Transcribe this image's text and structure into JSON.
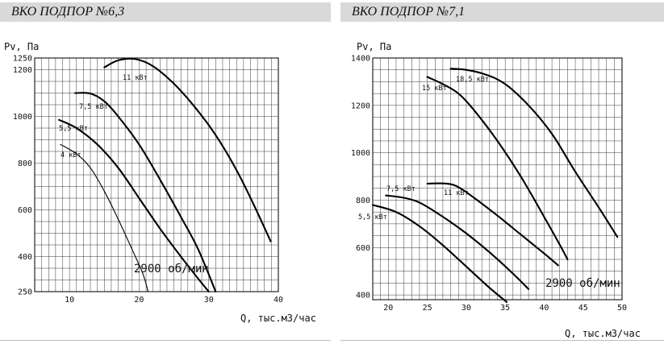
{
  "panels": [
    {
      "title": "ВКО ПОДПОР №6,3"
    },
    {
      "title": "ВКО ПОДПОР №7,1"
    }
  ],
  "chart_data": [
    {
      "type": "line",
      "title": "ВКО ПОДПОР №6,3",
      "xlabel": "Q, тыс.м3/час",
      "ylabel": "Pv, Па",
      "xlim": [
        5,
        40
      ],
      "ylim": [
        250,
        1250
      ],
      "xticks": [
        10,
        20,
        30,
        40
      ],
      "yticks": [
        250,
        400,
        600,
        800,
        1000,
        1200,
        1250
      ],
      "grid": true,
      "annotation": "2900 об/мин",
      "series": [
        {
          "name": "4 кВт",
          "bold": false,
          "x": [
            8.7,
            11,
            13,
            15,
            17,
            19,
            20.5,
            21.3
          ],
          "y": [
            880,
            840,
            780,
            680,
            560,
            430,
            330,
            250
          ]
        },
        {
          "name": "5,5 кВт",
          "bold": true,
          "x": [
            8.5,
            11,
            14,
            17,
            20,
            23,
            26,
            28.5,
            30
          ],
          "y": [
            985,
            950,
            880,
            780,
            650,
            520,
            400,
            305,
            250
          ]
        },
        {
          "name": "7,5 кВт",
          "bold": true,
          "x": [
            10.8,
            13,
            15,
            17,
            20,
            23,
            26,
            28.5,
            31
          ],
          "y": [
            1100,
            1098,
            1065,
            1000,
            880,
            730,
            570,
            430,
            250
          ]
        },
        {
          "name": "11 кВт",
          "bold": true,
          "x": [
            15,
            17,
            19.5,
            22,
            25,
            28,
            31,
            34,
            36.5,
            38.9
          ],
          "y": [
            1210,
            1240,
            1245,
            1215,
            1140,
            1040,
            920,
            770,
            620,
            465
          ]
        }
      ]
    },
    {
      "type": "line",
      "title": "ВКО ПОДПОР №7,1",
      "xlabel": "Q, тыс.м3/час",
      "ylabel": "Pv, Па",
      "xlim": [
        18,
        50
      ],
      "ylim": [
        380,
        1400
      ],
      "xticks": [
        20,
        25,
        30,
        35,
        40,
        45,
        50
      ],
      "yticks": [
        400,
        600,
        800,
        1000,
        1200,
        1400
      ],
      "grid": true,
      "annotation": "2900 об/мин",
      "series": [
        {
          "name": "5,5 кВт",
          "bold": true,
          "x": [
            18,
            21,
            24,
            27,
            30,
            33,
            35.2
          ],
          "y": [
            780,
            750,
            690,
            610,
            520,
            430,
            370
          ]
        },
        {
          "name": "7,5 кВт",
          "bold": true,
          "x": [
            19.7,
            22,
            24,
            27,
            30,
            33,
            36,
            38
          ],
          "y": [
            820,
            810,
            790,
            730,
            660,
            580,
            490,
            425
          ]
        },
        {
          "name": "11 кВт",
          "bold": true,
          "x": [
            25,
            27.5,
            29,
            31,
            34,
            37,
            40,
            41.8
          ],
          "y": [
            870,
            870,
            855,
            810,
            735,
            655,
            575,
            525
          ]
        },
        {
          "name": "15 кВт",
          "bold": true,
          "x": [
            25,
            27,
            29,
            31,
            34,
            37,
            40,
            42.2,
            43
          ],
          "y": [
            1320,
            1290,
            1250,
            1180,
            1050,
            900,
            730,
            600,
            550
          ]
        },
        {
          "name": "18,5 кВт",
          "bold": true,
          "x": [
            28,
            30,
            32.5,
            35,
            38,
            41,
            44,
            47,
            49.4
          ],
          "y": [
            1355,
            1350,
            1330,
            1290,
            1200,
            1080,
            920,
            770,
            645
          ]
        }
      ]
    }
  ]
}
